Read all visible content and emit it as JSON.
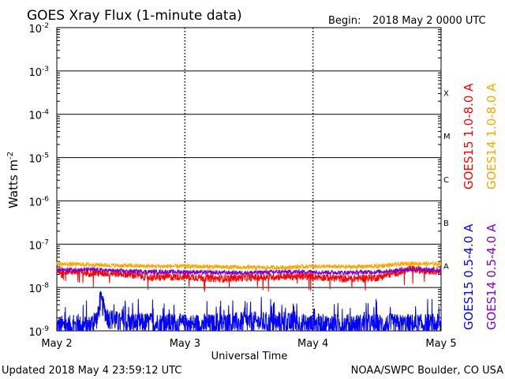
{
  "chart_data": {
    "type": "line",
    "title": "GOES Xray Flux (1-minute data)",
    "begin_label": "Begin:",
    "begin_value": "2018 May 2 0000 UTC",
    "ylabel": "Watts m",
    "ylabel_exp": "-2",
    "xlabel": "Universal Time",
    "x_ticks": [
      "May 2",
      "May 3",
      "May 4",
      "May 5"
    ],
    "y_scale": "log",
    "ylim": [
      1e-09,
      0.01
    ],
    "y_ticks": [
      {
        "base": "10",
        "exp": "-2",
        "value": 0.01
      },
      {
        "base": "10",
        "exp": "-3",
        "value": 0.001
      },
      {
        "base": "10",
        "exp": "-4",
        "value": 0.0001
      },
      {
        "base": "10",
        "exp": "-5",
        "value": 1e-05
      },
      {
        "base": "10",
        "exp": "-6",
        "value": 1e-06
      },
      {
        "base": "10",
        "exp": "-7",
        "value": 1e-07
      },
      {
        "base": "10",
        "exp": "-8",
        "value": 1e-08
      },
      {
        "base": "10",
        "exp": "-9",
        "value": 1e-09
      }
    ],
    "flare_classes": [
      {
        "label": "X",
        "value": 0.000316
      },
      {
        "label": "M",
        "value": 3.16e-05
      },
      {
        "label": "C",
        "value": 3.16e-06
      },
      {
        "label": "B",
        "value": 3.16e-07
      },
      {
        "label": "A",
        "value": 3.16e-08
      }
    ],
    "series": [
      {
        "name": "GOES15 1.0-8.0 A",
        "color": "#ff0000",
        "x_days": [
          0,
          0.25,
          0.5,
          0.75,
          1.0,
          1.25,
          1.5,
          1.75,
          2.0,
          2.25,
          2.5,
          2.75,
          3.0
        ],
        "values": [
          2.5e-08,
          2.2e-08,
          2.1e-08,
          1.7e-08,
          1.8e-08,
          1.6e-08,
          1.7e-08,
          1.8e-08,
          1.8e-08,
          1.6e-08,
          1.7e-08,
          2.6e-08,
          2.4e-08
        ]
      },
      {
        "name": "GOES14 1.0-8.0 A",
        "color": "#ffa500",
        "x_days": [
          0,
          0.25,
          0.5,
          0.75,
          1.0,
          1.25,
          1.5,
          1.75,
          2.0,
          2.25,
          2.5,
          2.75,
          3.0
        ],
        "values": [
          3.5e-08,
          3.4e-08,
          3.2e-08,
          3.1e-08,
          3.1e-08,
          3e-08,
          2.9e-08,
          2.9e-08,
          3.1e-08,
          3e-08,
          3.1e-08,
          3.6e-08,
          3.5e-08
        ]
      },
      {
        "name": "GOES15 0.5-4.0 A",
        "color": "#0000ff",
        "x_days": [
          0,
          0.25,
          0.32,
          0.34,
          0.4,
          0.5,
          0.75,
          1.0,
          1.25,
          1.5,
          1.75,
          2.0,
          2.25,
          2.5,
          2.75,
          3.0
        ],
        "values": [
          1.3e-09,
          1.3e-09,
          2e-09,
          5e-09,
          2e-09,
          1.5e-09,
          1.5e-09,
          1.4e-09,
          1.4e-09,
          1.6e-09,
          1.5e-09,
          1.4e-09,
          1.4e-09,
          1.4e-09,
          1.4e-09,
          1.4e-09
        ]
      },
      {
        "name": "GOES14 0.5-4.0 A",
        "color": "#7b00c8",
        "x_days": [
          0,
          0.25,
          0.5,
          0.75,
          1.0,
          1.25,
          1.5,
          1.75,
          2.0,
          2.25,
          2.5,
          2.75,
          3.0
        ],
        "values": [
          2.5e-08,
          2.6e-08,
          2.4e-08,
          2.3e-08,
          2.3e-08,
          2.2e-08,
          2.2e-08,
          2.3e-08,
          2.3e-08,
          2.2e-08,
          2.3e-08,
          2.6e-08,
          2.5e-08
        ]
      }
    ]
  },
  "footer": {
    "updated": "Updated 2018 May  4 23:59:12 UTC",
    "credit": "NOAA/SWPC Boulder, CO USA"
  }
}
